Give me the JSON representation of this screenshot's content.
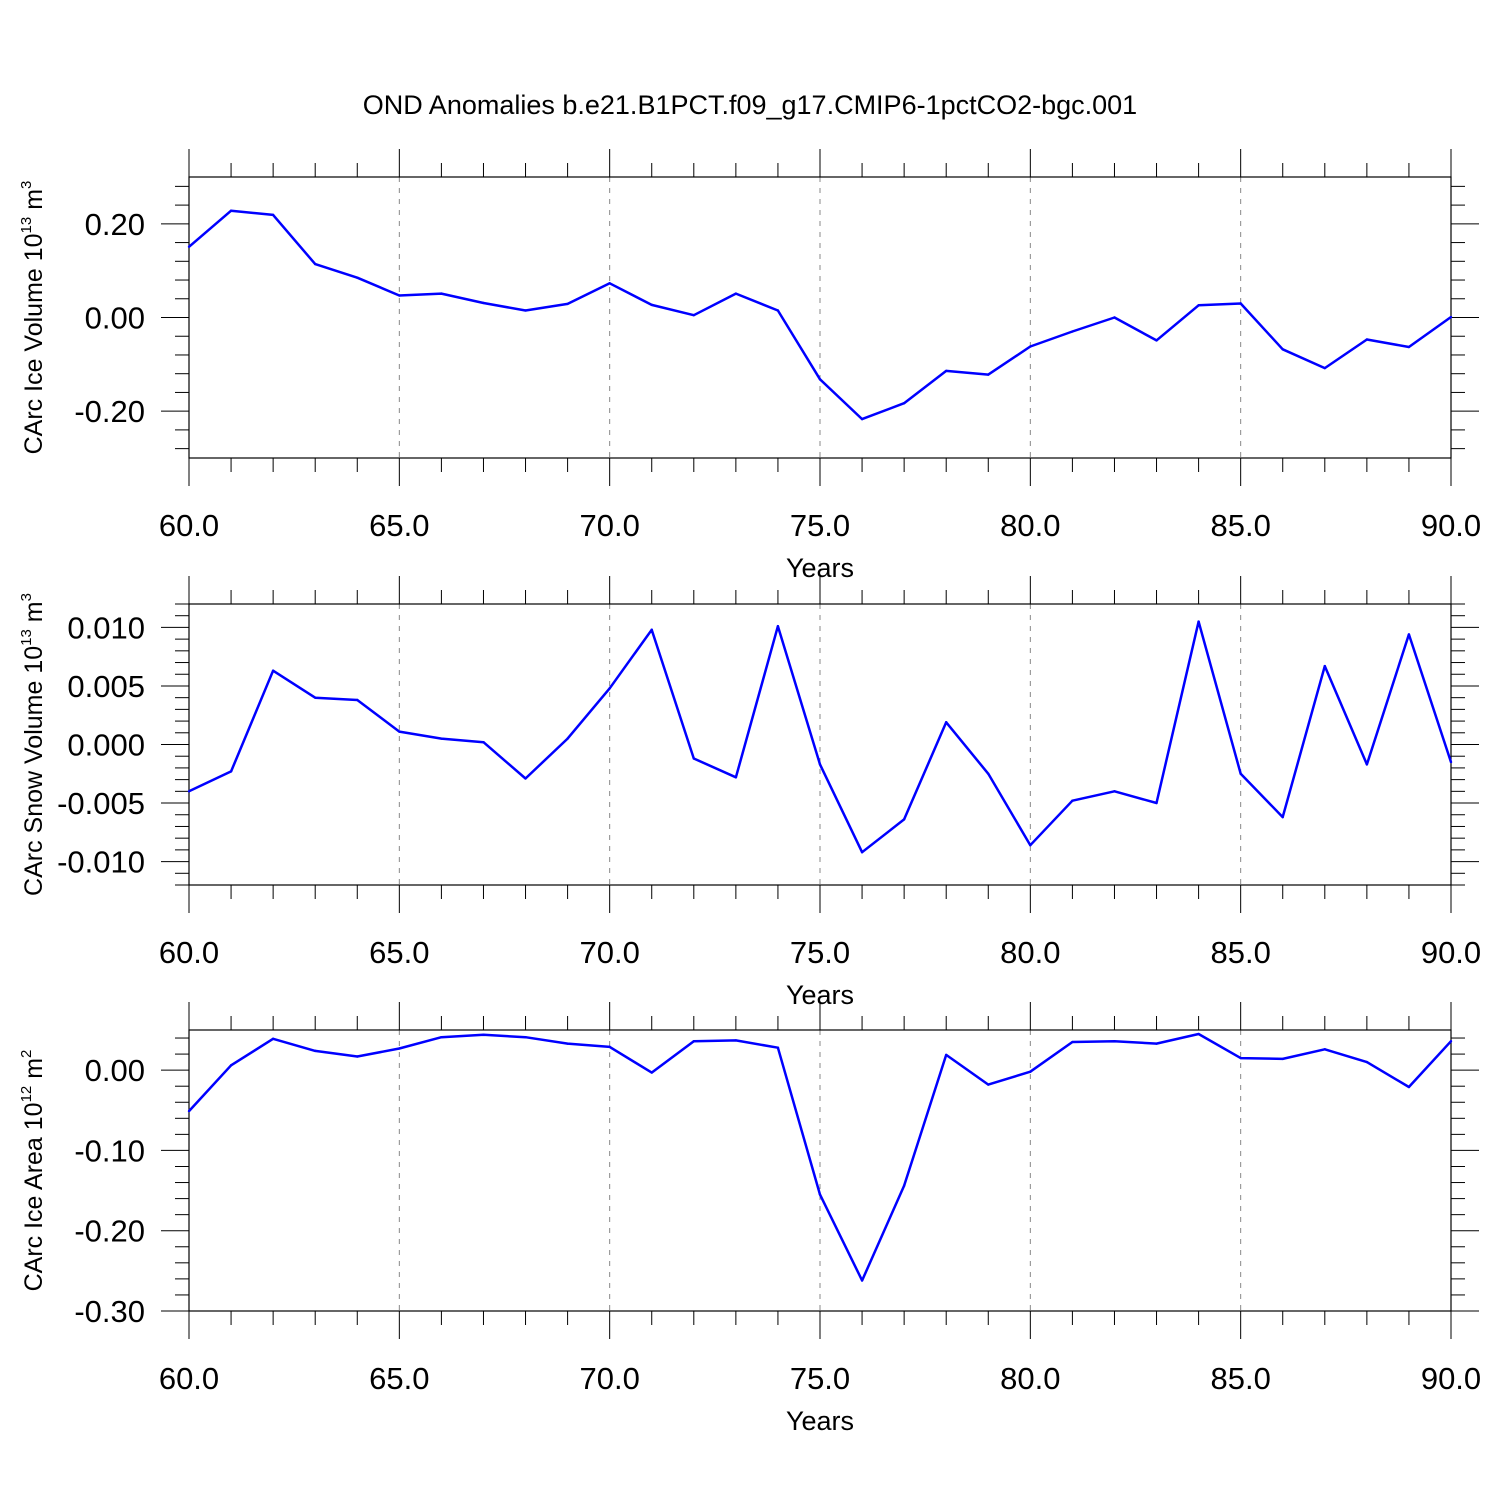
{
  "title": "OND Anomalies b.e21.B1PCT.f09_g17.CMIP6-1pctCO2-bgc.001",
  "colors": {
    "series": "#0000ff",
    "axes": "#000000",
    "grid": "#888888"
  },
  "chart_data": [
    {
      "type": "line",
      "ylabel": {
        "text": "CArc Ice Volume 10",
        "exp": "13",
        "unit": " m",
        "unit_exp": "3"
      },
      "xlabel": "Years",
      "xlim": [
        60,
        90
      ],
      "ylim": [
        -0.3,
        0.3
      ],
      "xticks": [
        60,
        65,
        70,
        75,
        80,
        85,
        90
      ],
      "xtick_labels": [
        "60.0",
        "65.0",
        "70.0",
        "75.0",
        "80.0",
        "85.0",
        "90.0"
      ],
      "yticks": [
        -0.2,
        0.0,
        0.2
      ],
      "ytick_labels": [
        "-0.20",
        "0.00",
        "0.20"
      ],
      "grid_x": "dashed vertical at major ticks",
      "x": [
        60,
        61,
        62,
        63,
        64,
        65,
        66,
        67,
        68,
        69,
        70,
        71,
        72,
        73,
        74,
        75,
        76,
        77,
        78,
        79,
        80,
        81,
        82,
        83,
        84,
        85,
        86,
        87,
        88,
        89,
        90
      ],
      "values": [
        0.151,
        0.228,
        0.219,
        0.114,
        0.085,
        0.047,
        0.051,
        0.031,
        0.015,
        0.029,
        0.073,
        0.027,
        0.005,
        0.051,
        0.015,
        -0.132,
        -0.217,
        -0.183,
        -0.114,
        -0.122,
        -0.062,
        -0.03,
        0.0,
        -0.049,
        0.026,
        0.03,
        -0.068,
        -0.108,
        -0.047,
        -0.063,
        0.001
      ]
    },
    {
      "type": "line",
      "ylabel": {
        "text": "CArc Snow Volume 10",
        "exp": "13",
        "unit": " m",
        "unit_exp": "3"
      },
      "xlabel": "Years",
      "xlim": [
        60,
        90
      ],
      "ylim": [
        -0.012,
        0.012
      ],
      "xticks": [
        60,
        65,
        70,
        75,
        80,
        85,
        90
      ],
      "xtick_labels": [
        "60.0",
        "65.0",
        "70.0",
        "75.0",
        "80.0",
        "85.0",
        "90.0"
      ],
      "yticks": [
        -0.01,
        -0.005,
        0.0,
        0.005,
        0.01
      ],
      "ytick_labels": [
        "-0.010",
        "-0.005",
        "0.000",
        "0.005",
        "0.010"
      ],
      "grid_x": "dashed vertical at major ticks",
      "x": [
        60,
        61,
        62,
        63,
        64,
        65,
        66,
        67,
        68,
        69,
        70,
        71,
        72,
        73,
        74,
        75,
        76,
        77,
        78,
        79,
        80,
        81,
        82,
        83,
        84,
        85,
        86,
        87,
        88,
        89,
        90
      ],
      "values": [
        -0.004,
        -0.0023,
        0.0063,
        0.004,
        0.0038,
        0.0011,
        0.0005,
        0.0002,
        -0.0029,
        0.0005,
        0.0048,
        0.0098,
        -0.0012,
        -0.0028,
        0.0101,
        -0.0017,
        -0.0092,
        -0.0064,
        0.0019,
        -0.0025,
        -0.0086,
        -0.0048,
        -0.004,
        -0.005,
        0.0105,
        -0.0025,
        -0.0062,
        0.0067,
        -0.0017,
        0.0094,
        -0.0015
      ]
    },
    {
      "type": "line",
      "ylabel": {
        "text": "CArc Ice Area 10",
        "exp": "12",
        "unit": " m",
        "unit_exp": "2"
      },
      "xlabel": "Years",
      "xlim": [
        60,
        90
      ],
      "ylim": [
        -0.3,
        0.05
      ],
      "xticks": [
        60,
        65,
        70,
        75,
        80,
        85,
        90
      ],
      "xtick_labels": [
        "60.0",
        "65.0",
        "70.0",
        "75.0",
        "80.0",
        "85.0",
        "90.0"
      ],
      "yticks": [
        -0.3,
        -0.2,
        -0.1,
        0.0
      ],
      "ytick_labels": [
        "-0.30",
        "-0.20",
        "-0.10",
        "0.00"
      ],
      "grid_x": "dashed vertical at major ticks",
      "x": [
        60,
        61,
        62,
        63,
        64,
        65,
        66,
        67,
        68,
        69,
        70,
        71,
        72,
        73,
        74,
        75,
        76,
        77,
        78,
        79,
        80,
        81,
        82,
        83,
        84,
        85,
        86,
        87,
        88,
        89,
        90
      ],
      "values": [
        -0.051,
        0.006,
        0.039,
        0.024,
        0.017,
        0.027,
        0.041,
        0.044,
        0.041,
        0.033,
        0.029,
        -0.003,
        0.036,
        0.037,
        0.028,
        -0.155,
        -0.262,
        -0.144,
        0.019,
        -0.018,
        -0.002,
        0.035,
        0.036,
        0.033,
        0.045,
        0.015,
        0.014,
        0.026,
        0.01,
        -0.021,
        0.036
      ]
    }
  ]
}
